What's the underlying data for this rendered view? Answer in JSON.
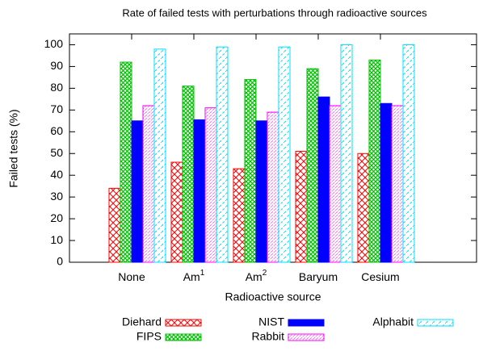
{
  "chart_data": {
    "type": "bar",
    "title": "Rate of failed tests with perturbations through radioactive sources",
    "x_label": "Radioactive source",
    "y_label": "Failed tests (%)",
    "categories": [
      "None",
      "Am",
      "Am",
      "Baryum",
      "Cesium"
    ],
    "category_superscripts": [
      null,
      "1",
      "2",
      null,
      null
    ],
    "series": [
      {
        "name": "Diehard",
        "color": "#ff0000",
        "pattern": "crosshatch",
        "values": [
          34,
          46,
          43,
          51,
          50
        ]
      },
      {
        "name": "FIPS",
        "color": "#00c000",
        "pattern": "diamond",
        "values": [
          92,
          81,
          84,
          89,
          93
        ]
      },
      {
        "name": "NIST",
        "color": "#0000ff",
        "pattern": "solid",
        "values": [
          65,
          65.5,
          65,
          76,
          73
        ]
      },
      {
        "name": "Rabbit",
        "color": "#ff00ff",
        "pattern": "dots",
        "values": [
          72,
          71,
          69,
          72,
          72
        ]
      },
      {
        "name": "Alphabit",
        "color": "#00e0ff",
        "pattern": "dashed",
        "values": [
          98,
          99,
          99,
          100,
          100
        ]
      }
    ],
    "ylim": [
      0,
      105
    ],
    "yticks": [
      0,
      10,
      20,
      30,
      40,
      50,
      60,
      70,
      80,
      90,
      100
    ]
  }
}
